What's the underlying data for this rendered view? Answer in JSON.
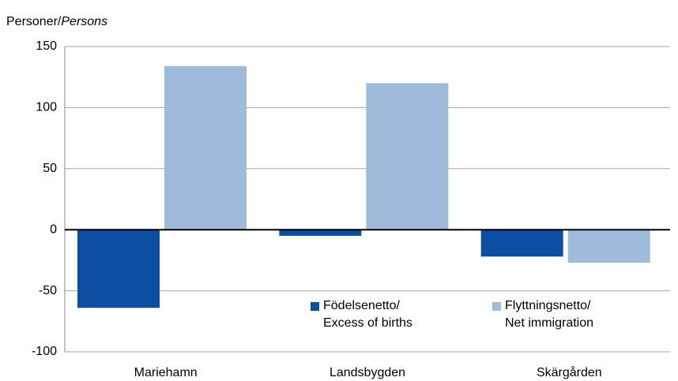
{
  "chart_data": {
    "type": "bar",
    "y_label_parts": [
      "Personer/",
      "Persons"
    ],
    "categories": [
      "Mariehamn",
      "Landsbygden",
      "Skärgården"
    ],
    "series": [
      {
        "name": "Födelsenetto/\nExcess of births",
        "color": "#0b4ea2",
        "values": [
          -64,
          -5,
          -22
        ]
      },
      {
        "name": "Flyttningsnetto/\nNet immigration",
        "color": "#9fbadb",
        "values": [
          134,
          120,
          -27
        ]
      }
    ],
    "ylim": [
      -100,
      150
    ],
    "yticks": [
      -100,
      -50,
      0,
      50,
      100,
      150
    ],
    "grid": true
  }
}
